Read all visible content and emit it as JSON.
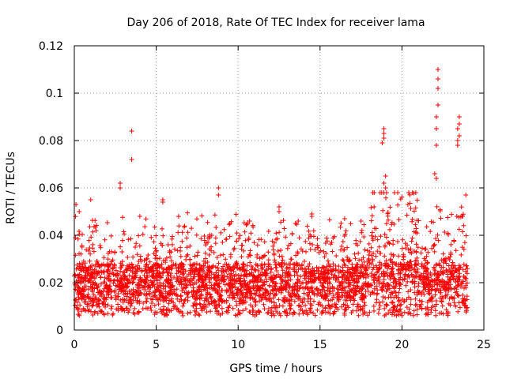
{
  "chart_data": {
    "type": "scatter",
    "title": "Day 206 of 2018, Rate Of TEC Index for receiver lama",
    "xlabel": "GPS time / hours",
    "ylabel": "ROTI / TECUs",
    "xlim": [
      0,
      25
    ],
    "ylim": [
      0,
      0.12
    ],
    "x_ticks": [
      0,
      5,
      10,
      15,
      20,
      25
    ],
    "y_ticks": [
      0,
      0.02,
      0.04,
      0.06,
      0.08,
      0.1,
      0.12
    ],
    "grid": true,
    "marker": "plus",
    "color": "#ff0000",
    "series": [
      {
        "name": "ROTI",
        "x": [
          3.5,
          3.5,
          2.8,
          2.8,
          8.8,
          8.8,
          5.4,
          5.4,
          18.9,
          18.9,
          18.9,
          18.8,
          19.0,
          18.9,
          19.0,
          18.9,
          22.2,
          22.2,
          22.2,
          22.2,
          22.1,
          22.1,
          22.1,
          22.0,
          22.1,
          23.5,
          23.5,
          23.4,
          23.5,
          23.4,
          23.4,
          23.9,
          12.5,
          12.5,
          14.5,
          14.5,
          13.5,
          16.5,
          17.5,
          18.3,
          1.0,
          0.3,
          0.1,
          4.0,
          10.7,
          9.5
        ],
        "y": [
          0.084,
          0.072,
          0.062,
          0.06,
          0.06,
          0.057,
          0.055,
          0.054,
          0.085,
          0.083,
          0.081,
          0.079,
          0.065,
          0.062,
          0.06,
          0.058,
          0.11,
          0.106,
          0.102,
          0.095,
          0.09,
          0.085,
          0.078,
          0.066,
          0.064,
          0.09,
          0.087,
          0.085,
          0.082,
          0.08,
          0.078,
          0.057,
          0.052,
          0.05,
          0.049,
          0.048,
          0.045,
          0.047,
          0.046,
          0.052,
          0.055,
          0.05,
          0.053,
          0.048,
          0.046,
          0.045
        ]
      }
    ]
  }
}
